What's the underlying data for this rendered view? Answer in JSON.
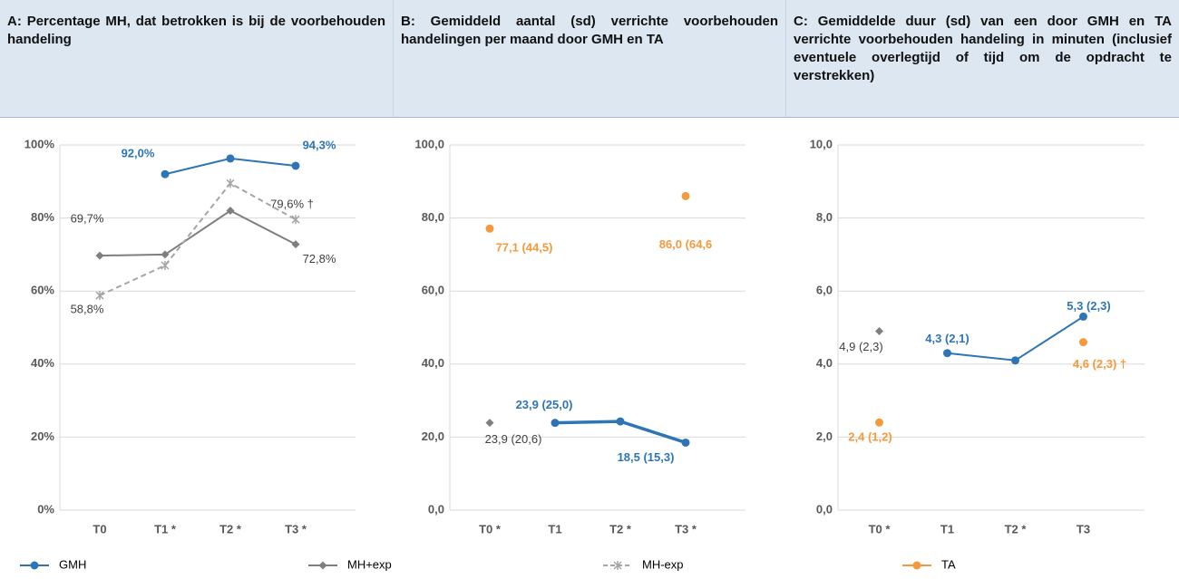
{
  "legend": [
    {
      "name": "GMH",
      "color": "#2e75b6",
      "marker": "circle",
      "dash": false
    },
    {
      "name": "MH+exp",
      "color": "#7f7f7f",
      "marker": "diamond",
      "dash": false
    },
    {
      "name": "MH-exp",
      "color": "#a5a5a5",
      "marker": "star",
      "dash": true
    },
    {
      "name": "TA",
      "color": "#f59a3c",
      "marker": "circle",
      "dash": false
    }
  ],
  "chart_data": [
    {
      "type": "line",
      "title": "A: Percentage MH, dat betrokken is bij de voorbehouden handeling",
      "categories": [
        "T0",
        "T1 *",
        "T2 *",
        "T3 *"
      ],
      "ylim": [
        0,
        100
      ],
      "yticks": [
        {
          "value": 0,
          "label": "0%"
        },
        {
          "value": 20,
          "label": "20%"
        },
        {
          "value": 40,
          "label": "40%"
        },
        {
          "value": 60,
          "label": "60%"
        },
        {
          "value": 80,
          "label": "80%"
        },
        {
          "value": 100,
          "label": "100%"
        }
      ],
      "series": [
        {
          "name": "GMH",
          "values": [
            null,
            92.0,
            96.3,
            94.3
          ],
          "value_labels": [
            null,
            "92,0%",
            null,
            "94,3%"
          ]
        },
        {
          "name": "MH+exp",
          "values": [
            69.7,
            70.0,
            82.0,
            72.8
          ],
          "value_labels": [
            "69,7%",
            null,
            null,
            "72,8%"
          ]
        },
        {
          "name": "MH-exp",
          "values": [
            58.8,
            67.0,
            89.5,
            79.6
          ],
          "value_labels": [
            "58,8%",
            null,
            null,
            "79,6% †"
          ]
        }
      ]
    },
    {
      "type": "line",
      "title": "B: Gemiddeld aantal (sd) verrichte voorbehouden handelingen per maand door GMH en TA",
      "categories": [
        "T0 *",
        "T1",
        "T2 *",
        "T3 *"
      ],
      "ylim": [
        0,
        100
      ],
      "yticks": [
        {
          "value": 0,
          "label": "0,0"
        },
        {
          "value": 20,
          "label": "20,0"
        },
        {
          "value": 40,
          "label": "40,0"
        },
        {
          "value": 60,
          "label": "60,0"
        },
        {
          "value": 80,
          "label": "80,0"
        },
        {
          "value": 100,
          "label": "100,0"
        }
      ],
      "series": [
        {
          "name": "TA",
          "values": [
            77.1,
            null,
            null,
            86.0
          ],
          "value_labels": [
            "77,1 (44,5)",
            null,
            null,
            "86,0 (64,6"
          ]
        },
        {
          "name": "MH+exp",
          "values": [
            23.9,
            null,
            null,
            null
          ],
          "value_labels": [
            "23,9 (20,6)",
            null,
            null,
            null
          ]
        },
        {
          "name": "GMH",
          "values": [
            null,
            23.9,
            24.3,
            18.5
          ],
          "value_labels": [
            null,
            "23,9 (25,0)",
            null,
            "18,5 (15,3)"
          ]
        }
      ]
    },
    {
      "type": "line",
      "title": "C: Gemiddelde duur (sd) van een door GMH en TA verrichte voorbehouden handeling in minuten (inclusief eventuele overlegtijd of tijd om de opdracht te verstrekken)",
      "categories": [
        "T0 *",
        "T1",
        "T2 *",
        "T3"
      ],
      "ylim": [
        0,
        10
      ],
      "yticks": [
        {
          "value": 0,
          "label": "0,0"
        },
        {
          "value": 2,
          "label": "2,0"
        },
        {
          "value": 4,
          "label": "4,0"
        },
        {
          "value": 6,
          "label": "6,0"
        },
        {
          "value": 8,
          "label": "8,0"
        },
        {
          "value": 10,
          "label": "10,0"
        }
      ],
      "series": [
        {
          "name": "MH+exp",
          "values": [
            4.9,
            null,
            null,
            null
          ],
          "value_labels": [
            "4,9 (2,3)",
            null,
            null,
            null
          ]
        },
        {
          "name": "TA",
          "values": [
            2.4,
            null,
            null,
            4.6
          ],
          "value_labels": [
            "2,4 (1,2)",
            null,
            null,
            "4,6 (2,3) †"
          ]
        },
        {
          "name": "GMH",
          "values": [
            null,
            4.3,
            4.1,
            5.3
          ],
          "value_labels": [
            null,
            "4,3 (2,1)",
            null,
            "5,3 (2,3)"
          ]
        }
      ]
    }
  ]
}
